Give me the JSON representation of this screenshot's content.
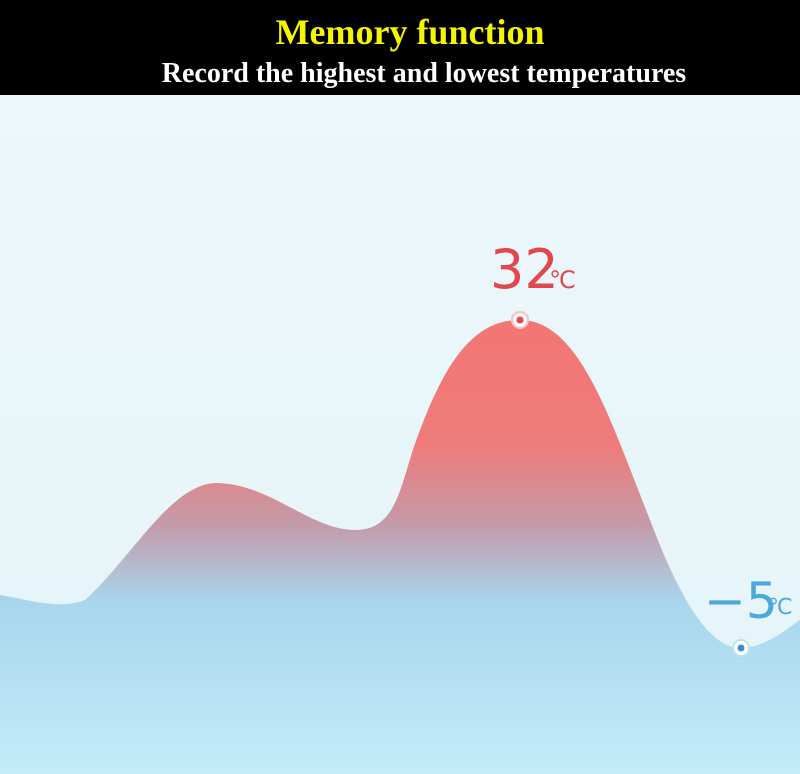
{
  "header": {
    "title": "Memory function",
    "subtitle": "Record the highest and lowest temperatures"
  },
  "labels": {
    "high": {
      "number": "32",
      "unit": "℃"
    },
    "low": {
      "number": "−5",
      "unit": "℃"
    }
  }
}
